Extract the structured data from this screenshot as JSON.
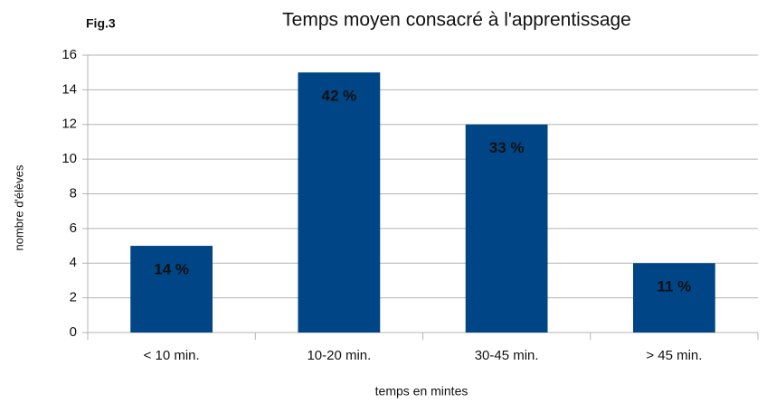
{
  "chart_data": {
    "type": "bar",
    "figure_label": "Fig.3",
    "title": "Temps moyen consacré à l'apprentissage",
    "x_label": "temps en mintes",
    "y_label": "nombre d'élèves",
    "categories": [
      "< 10 min.",
      "10-20 min.",
      "30-45 min.",
      "> 45 min."
    ],
    "values": [
      5,
      15,
      12,
      4
    ],
    "annotations": [
      "14 %",
      "42 %",
      "33 %",
      "11 %"
    ],
    "color": "#004586",
    "ylim": [
      0,
      16
    ],
    "yticks": [
      0,
      2,
      4,
      6,
      8,
      10,
      12,
      14,
      16
    ],
    "grid": true
  }
}
